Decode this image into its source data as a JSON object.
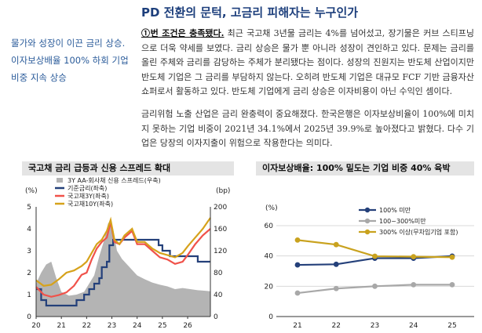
{
  "title": "PD 전환의 문턱, 고금리 피해자는 누구인가",
  "sidenote": "물가와 성장이 이끈 금리 상승. 이자보상배율 100% 하회 기업 비중 지속 상승",
  "body": {
    "p1_lead": "①번 조건은 충족됐다.",
    "p1_rest": " 최근 국고채 3년물 금리는 4%를 넘어섰고, 장기물은 커브 스티프닝으로 더욱 약세를 보였다. 금리 상승은 물가 뿐 아니라 성장이 견인하고 있다. 문제는 금리를 올린 주체와 금리를 감당하는 주체가 분리됐다는 점이다. 성장의 진원지는 반도체 산업이지만 반도체 기업은 그 금리를 부담하지 않는다. 오히려 반도체 기업은 대규모 FCF 기반 금융자산 쇼퍼로서 활동하고 있다. 반도체 기업에게 금리 상승은 이자비용이 아닌 수익인 셈이다.",
    "p2": "금리위험 노출 산업은 금리 완충력이 중요해졌다. 한국은행은 이자보상비율이 100%에 미치지 못하는 기업 비중이 2021년 34.1%에서 2025년 39.9%로 높아졌다고 밝혔다. 다수 기업은 당장의 이자지출이 위험으로 작용한다는 의미다."
  },
  "chart1_title": "국고채 금리 급등과 신용 스프레드 확대",
  "chart2_title": "이자보상배율: 100% 밑도는 기업 비중 40% 육박",
  "chart_data": [
    {
      "type": "line",
      "left_unit": "(%)",
      "right_unit": "(bp)",
      "x_ticks": [
        "20",
        "21",
        "22",
        "23",
        "24",
        "25",
        "26"
      ],
      "x_range": [
        2020.0,
        2026.9
      ],
      "ylim": [
        0,
        5
      ],
      "y_ticks": [
        0,
        1,
        2,
        3,
        4,
        5
      ],
      "y2lim": [
        0,
        200
      ],
      "y2_ticks": [
        0,
        40,
        80,
        120,
        160,
        200
      ],
      "series": [
        {
          "name": "3Y AA-회사채 신용 스프레드(우축)",
          "kind": "area",
          "axis": "right",
          "color": "#b4b4b4",
          "x": [
            2020.0,
            2020.2,
            2020.4,
            2020.6,
            2020.8,
            2021.0,
            2021.3,
            2021.6,
            2021.9,
            2022.1,
            2022.3,
            2022.5,
            2022.7,
            2022.85,
            2022.95,
            2023.05,
            2023.2,
            2023.4,
            2023.7,
            2024.0,
            2024.3,
            2024.6,
            2024.9,
            2025.2,
            2025.5,
            2025.8,
            2026.1,
            2026.4,
            2026.7,
            2026.9
          ],
          "y": [
            60,
            80,
            95,
            100,
            70,
            45,
            38,
            40,
            45,
            60,
            75,
            110,
            140,
            170,
            175,
            160,
            120,
            105,
            90,
            75,
            68,
            62,
            58,
            55,
            50,
            52,
            50,
            48,
            47,
            46
          ]
        },
        {
          "name": "기준금리(좌축)",
          "kind": "step",
          "axis": "left",
          "color": "#24407a",
          "x": [
            2020.0,
            2020.2,
            2020.4,
            2021.6,
            2021.9,
            2022.1,
            2022.3,
            2022.5,
            2022.6,
            2022.8,
            2022.9,
            2023.05,
            2024.75,
            2024.85,
            2025.0,
            2025.3,
            2026.4,
            2026.9
          ],
          "y": [
            1.25,
            0.75,
            0.5,
            0.75,
            1.0,
            1.25,
            1.5,
            1.75,
            2.25,
            2.5,
            3.25,
            3.5,
            3.5,
            3.25,
            3.0,
            2.75,
            2.5,
            2.5
          ]
        },
        {
          "name": "국고채3Y(좌축)",
          "kind": "line",
          "axis": "left",
          "color": "#f0524a",
          "x": [
            2020.0,
            2020.3,
            2020.6,
            2020.9,
            2021.2,
            2021.5,
            2021.8,
            2022.0,
            2022.2,
            2022.4,
            2022.6,
            2022.8,
            2022.95,
            2023.1,
            2023.3,
            2023.5,
            2023.8,
            2024.0,
            2024.3,
            2024.6,
            2024.9,
            2025.2,
            2025.5,
            2025.8,
            2026.0,
            2026.3,
            2026.6,
            2026.9
          ],
          "y": [
            1.35,
            1.0,
            0.9,
            0.98,
            1.1,
            1.4,
            1.9,
            2.0,
            2.6,
            3.1,
            3.4,
            3.6,
            4.3,
            3.4,
            3.3,
            3.6,
            3.9,
            3.3,
            3.3,
            3.0,
            2.7,
            2.6,
            2.4,
            2.5,
            2.8,
            3.3,
            3.7,
            4.0
          ]
        },
        {
          "name": "국고채10Y(좌축)",
          "kind": "line",
          "axis": "left",
          "color": "#d6a21b",
          "x": [
            2020.0,
            2020.3,
            2020.6,
            2020.9,
            2021.2,
            2021.5,
            2021.8,
            2022.0,
            2022.2,
            2022.4,
            2022.6,
            2022.8,
            2022.95,
            2023.1,
            2023.3,
            2023.5,
            2023.8,
            2024.0,
            2024.3,
            2024.6,
            2024.9,
            2025.2,
            2025.5,
            2025.8,
            2026.0,
            2026.3,
            2026.6,
            2026.9
          ],
          "y": [
            1.65,
            1.4,
            1.45,
            1.7,
            2.0,
            2.1,
            2.3,
            2.5,
            2.9,
            3.3,
            3.5,
            3.9,
            4.4,
            3.5,
            3.3,
            3.7,
            4.0,
            3.4,
            3.4,
            3.1,
            2.9,
            2.8,
            2.7,
            2.9,
            3.2,
            3.6,
            4.0,
            4.5
          ]
        }
      ]
    },
    {
      "type": "line",
      "y_unit": "(%)",
      "categories": [
        "21",
        "22",
        "23",
        "24",
        "25"
      ],
      "ylim": [
        0,
        60
      ],
      "y_ticks": [
        0,
        20,
        40,
        60
      ],
      "series": [
        {
          "name": "100% 미만",
          "color": "#24407a",
          "values": [
            34.1,
            34.5,
            38.5,
            38.5,
            39.9
          ]
        },
        {
          "name": "100~300%미만",
          "color": "#a8a8a8",
          "values": [
            15.5,
            18.5,
            20.0,
            21.0,
            21.0
          ]
        },
        {
          "name": "300% 이상(무차입기업 포함)",
          "color": "#c9a21e",
          "values": [
            50.5,
            47.5,
            39.8,
            39.5,
            39.2
          ]
        }
      ]
    }
  ]
}
